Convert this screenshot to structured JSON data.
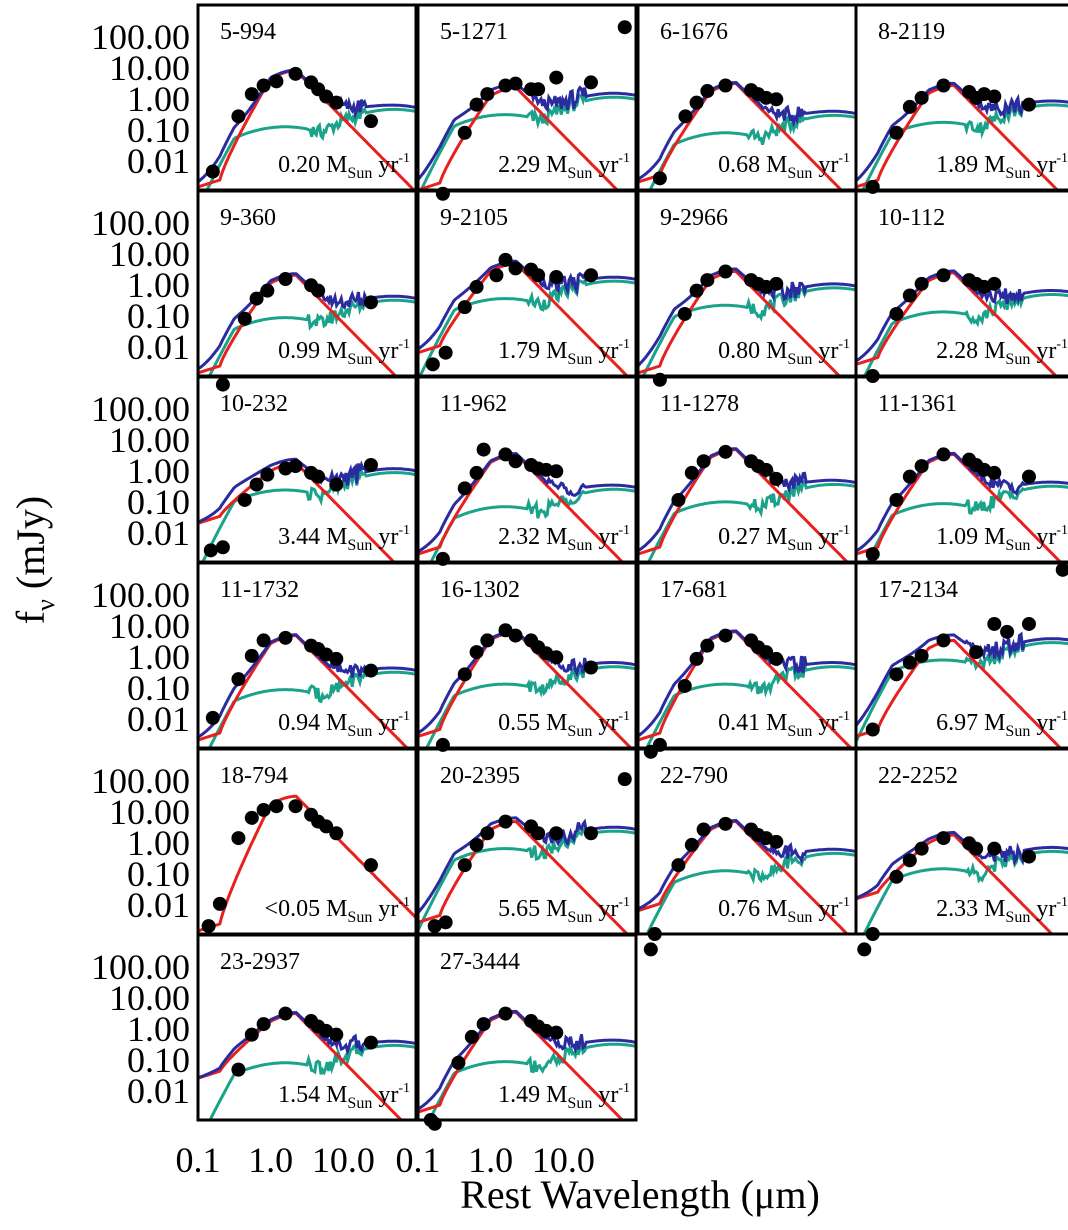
{
  "figure": {
    "ylabel_main": "f",
    "ylabel_sub": "ν",
    "ylabel_unit": "(mJy)",
    "xlabel": "Rest Wavelength (μm)",
    "y_tick_labels": [
      "100.00",
      "10.00",
      "1.00",
      "0.10",
      "0.01"
    ],
    "x_tick_labels": [
      "0.1",
      "1.0",
      "10.0"
    ],
    "sfr_unit_main": "M",
    "sfr_unit_sub": "Sun",
    "sfr_unit_yr": "yr",
    "sfr_unit_exp": "-1"
  },
  "chart_data": {
    "type": "line",
    "layout": "grid of 22 panels, 4 columns x 6 rows",
    "x_scale": "log",
    "y_scale": "log",
    "xlim": [
      0.1,
      100
    ],
    "ylim": [
      0.005,
      300
    ],
    "colors": {
      "total": "#2b2ba0",
      "stellar": "#e8201e",
      "dust": "#1aa38a",
      "points": "#000000"
    },
    "panels": [
      {
        "id": "5-994",
        "sfr": "0.20",
        "sfr_prefix": "",
        "peak": 6,
        "dust_scale": 0.08,
        "uv": 0.006,
        "has_total": true,
        "points": [
          [
            0.16,
            0.015
          ],
          [
            0.36,
            0.4
          ],
          [
            0.55,
            1.5
          ],
          [
            0.8,
            2.5
          ],
          [
            1.2,
            3.2
          ],
          [
            2.2,
            5
          ],
          [
            3.6,
            3
          ],
          [
            4.5,
            2
          ],
          [
            5.8,
            1.3
          ],
          [
            8,
            0.9
          ],
          [
            24,
            0.3
          ]
        ]
      },
      {
        "id": "5-1271",
        "sfr": "2.29",
        "sfr_prefix": "",
        "peak": 2.2,
        "dust_scale": 0.45,
        "uv": 0.005,
        "has_total": true,
        "points": [
          [
            0.22,
            0.004
          ],
          [
            0.44,
            0.15
          ],
          [
            0.64,
            0.8
          ],
          [
            0.9,
            1.5
          ],
          [
            1.6,
            2.5
          ],
          [
            2.2,
            2.8
          ],
          [
            3.6,
            2
          ],
          [
            4.5,
            2
          ],
          [
            8,
            4
          ],
          [
            24,
            3
          ],
          [
            70,
            80
          ]
        ]
      },
      {
        "id": "6-1676",
        "sfr": "0.68",
        "sfr_prefix": "",
        "peak": 2.8,
        "dust_scale": 0.12,
        "uv": 0.008,
        "has_total": true,
        "points": [
          [
            0.2,
            0.01
          ],
          [
            0.45,
            0.4
          ],
          [
            0.64,
            0.9
          ],
          [
            0.9,
            1.8
          ],
          [
            1.6,
            2.5
          ],
          [
            3.6,
            1.9
          ],
          [
            4.5,
            1.5
          ],
          [
            5.8,
            1.2
          ],
          [
            8,
            1.1
          ]
        ]
      },
      {
        "id": "8-2119",
        "sfr": "1.89",
        "sfr_prefix": "",
        "peak": 2.5,
        "dust_scale": 0.25,
        "uv": 0.006,
        "has_total": true,
        "points": [
          [
            0.17,
            0.006
          ],
          [
            0.36,
            0.15
          ],
          [
            0.55,
            0.7
          ],
          [
            0.8,
            1.2
          ],
          [
            1.6,
            2.5
          ],
          [
            3.6,
            1.7
          ],
          [
            4.5,
            1.2
          ],
          [
            5.8,
            1.5
          ],
          [
            8,
            1.3
          ],
          [
            24,
            0.8
          ]
        ]
      },
      {
        "id": "9-360",
        "sfr": "0.99",
        "sfr_prefix": "",
        "peak": 2,
        "dust_scale": 0.18,
        "uv": 0.006,
        "has_total": true,
        "points": [
          [
            0.22,
            0.003
          ],
          [
            0.44,
            0.15
          ],
          [
            0.64,
            0.5
          ],
          [
            0.9,
            0.8
          ],
          [
            1.6,
            1.6
          ],
          [
            3.6,
            1.1
          ],
          [
            4.5,
            0.8
          ],
          [
            24,
            0.4
          ]
        ]
      },
      {
        "id": "9-2105",
        "sfr": "1.79",
        "sfr_prefix": "",
        "peak": 4,
        "dust_scale": 0.28,
        "uv": 0.02,
        "has_total": true,
        "points": [
          [
            0.16,
            0.01
          ],
          [
            0.24,
            0.02
          ],
          [
            0.44,
            0.3
          ],
          [
            0.64,
            1
          ],
          [
            1.2,
            2
          ],
          [
            1.6,
            5
          ],
          [
            2.2,
            3
          ],
          [
            3.6,
            2.8
          ],
          [
            4.5,
            2
          ],
          [
            8,
            1.8
          ],
          [
            24,
            2
          ]
        ]
      },
      {
        "id": "9-2966",
        "sfr": "0.80",
        "sfr_prefix": "",
        "peak": 2.5,
        "dust_scale": 0.3,
        "uv": 0.006,
        "has_total": true,
        "points": [
          [
            0.2,
            0.004
          ],
          [
            0.44,
            0.2
          ],
          [
            0.64,
            0.8
          ],
          [
            0.9,
            1.5
          ],
          [
            1.6,
            2.5
          ],
          [
            3.6,
            1.5
          ],
          [
            4.5,
            1.2
          ],
          [
            5.8,
            1
          ],
          [
            8,
            1.2
          ]
        ]
      },
      {
        "id": "10-112",
        "sfr": "2.28",
        "sfr_prefix": "",
        "peak": 2.3,
        "dust_scale": 0.22,
        "uv": 0.01,
        "has_total": true,
        "points": [
          [
            0.17,
            0.005
          ],
          [
            0.36,
            0.2
          ],
          [
            0.55,
            0.6
          ],
          [
            0.8,
            1.2
          ],
          [
            1.6,
            2
          ],
          [
            3.6,
            1.5
          ],
          [
            4.5,
            1.2
          ],
          [
            5.8,
            1
          ],
          [
            8,
            1.2
          ]
        ]
      },
      {
        "id": "10-232",
        "sfr": "3.44",
        "sfr_prefix": "",
        "peak": 1.8,
        "dust_scale": 0.45,
        "uv": 0.05,
        "has_total": true,
        "points": [
          [
            0.15,
            0.01
          ],
          [
            0.22,
            0.012
          ],
          [
            0.44,
            0.2
          ],
          [
            0.64,
            0.5
          ],
          [
            0.9,
            0.9
          ],
          [
            1.6,
            1.3
          ],
          [
            2.2,
            1.5
          ],
          [
            3.6,
            1
          ],
          [
            4.5,
            0.8
          ],
          [
            8,
            0.5
          ],
          [
            24,
            1.6
          ]
        ]
      },
      {
        "id": "11-962",
        "sfr": "2.32",
        "sfr_prefix": "",
        "peak": 3,
        "dust_scale": 0.1,
        "uv": 0.008,
        "has_total": true,
        "points": [
          [
            0.22,
            0.006
          ],
          [
            0.44,
            0.4
          ],
          [
            0.64,
            1
          ],
          [
            0.8,
            4
          ],
          [
            1.6,
            3
          ],
          [
            2.2,
            2
          ],
          [
            3.6,
            1.6
          ],
          [
            4.5,
            1.3
          ],
          [
            5.8,
            1.2
          ],
          [
            8,
            1.1
          ]
        ]
      },
      {
        "id": "11-1278",
        "sfr": "0.27",
        "sfr_prefix": "",
        "peak": 4,
        "dust_scale": 0.1,
        "uv": 0.008,
        "has_total": true,
        "points": [
          [
            0.36,
            0.2
          ],
          [
            0.55,
            1
          ],
          [
            0.8,
            2
          ],
          [
            1.6,
            3.5
          ],
          [
            3.6,
            2
          ],
          [
            4.5,
            1.5
          ],
          [
            5.8,
            1.2
          ],
          [
            8,
            0.7
          ]
        ]
      },
      {
        "id": "11-1361",
        "sfr": "1.09",
        "sfr_prefix": "",
        "peak": 3,
        "dust_scale": 0.12,
        "uv": 0.008,
        "has_total": true,
        "points": [
          [
            0.17,
            0.008
          ],
          [
            0.36,
            0.2
          ],
          [
            0.55,
            0.8
          ],
          [
            0.8,
            1.5
          ],
          [
            1.6,
            3
          ],
          [
            3.6,
            2.2
          ],
          [
            4.5,
            1.6
          ],
          [
            5.8,
            1.2
          ],
          [
            8,
            1
          ],
          [
            24,
            0.8
          ]
        ]
      },
      {
        "id": "11-1732",
        "sfr": "0.94",
        "sfr_prefix": "",
        "peak": 4,
        "dust_scale": 0.09,
        "uv": 0.008,
        "has_total": true,
        "points": [
          [
            0.16,
            0.03
          ],
          [
            0.36,
            0.3
          ],
          [
            0.55,
            1.2
          ],
          [
            0.8,
            3
          ],
          [
            1.6,
            3.5
          ],
          [
            3.6,
            2.2
          ],
          [
            4.5,
            1.8
          ],
          [
            5.8,
            1.3
          ],
          [
            8,
            1
          ],
          [
            24,
            0.5
          ]
        ]
      },
      {
        "id": "16-1302",
        "sfr": "0.55",
        "sfr_prefix": "",
        "peak": 5,
        "dust_scale": 0.1,
        "uv": 0.01,
        "has_total": true,
        "points": [
          [
            0.22,
            0.006
          ],
          [
            0.44,
            0.4
          ],
          [
            0.64,
            1.5
          ],
          [
            0.9,
            3
          ],
          [
            1.6,
            5.5
          ],
          [
            2.2,
            4
          ],
          [
            3.6,
            3
          ],
          [
            4.5,
            2
          ],
          [
            5.8,
            1.4
          ],
          [
            8,
            1.1
          ],
          [
            24,
            0.6
          ]
        ]
      },
      {
        "id": "17-681",
        "sfr": "0.41",
        "sfr_prefix": "",
        "peak": 5,
        "dust_scale": 0.1,
        "uv": 0.008,
        "has_total": true,
        "points": [
          [
            0.15,
            0.004
          ],
          [
            0.2,
            0.006
          ],
          [
            0.44,
            0.2
          ],
          [
            0.64,
            1
          ],
          [
            0.9,
            2.2
          ],
          [
            1.6,
            4
          ],
          [
            3.6,
            3
          ],
          [
            4.5,
            2
          ],
          [
            5.8,
            1.5
          ],
          [
            8,
            1
          ]
        ]
      },
      {
        "id": "17-2134",
        "sfr": "6.97",
        "sfr_prefix": "",
        "peak": 3,
        "dust_scale": 0.7,
        "uv": 0.01,
        "has_total": true,
        "points": [
          [
            0.17,
            0.015
          ],
          [
            0.36,
            0.4
          ],
          [
            0.55,
            0.8
          ],
          [
            0.8,
            1.2
          ],
          [
            1.6,
            3
          ],
          [
            4.5,
            1.5
          ],
          [
            8,
            8
          ],
          [
            12,
            5
          ],
          [
            24,
            8
          ],
          [
            70,
            200
          ]
        ]
      },
      {
        "id": "18-794",
        "sfr": "0.05",
        "sfr_prefix": "<",
        "peak": 18,
        "dust_scale": 0,
        "uv": 0.006,
        "has_total": false,
        "points": [
          [
            0.14,
            0.008
          ],
          [
            0.2,
            0.03
          ],
          [
            0.36,
            1.5
          ],
          [
            0.55,
            5
          ],
          [
            0.8,
            8
          ],
          [
            1.2,
            10
          ],
          [
            2.2,
            10
          ],
          [
            3.6,
            6
          ],
          [
            4.5,
            4
          ],
          [
            5.8,
            3
          ],
          [
            8,
            2
          ],
          [
            24,
            0.3
          ]
        ]
      },
      {
        "id": "20-2395",
        "sfr": "5.65",
        "sfr_prefix": "",
        "peak": 4,
        "dust_scale": 0.45,
        "uv": 0.01,
        "has_total": true,
        "points": [
          [
            0.17,
            0.008
          ],
          [
            0.24,
            0.01
          ],
          [
            0.44,
            0.3
          ],
          [
            0.64,
            1
          ],
          [
            0.9,
            2
          ],
          [
            1.6,
            4
          ],
          [
            3.6,
            3
          ],
          [
            4.5,
            2
          ],
          [
            8,
            2
          ],
          [
            24,
            2
          ],
          [
            70,
            50
          ]
        ]
      },
      {
        "id": "22-790",
        "sfr": "0.76",
        "sfr_prefix": "",
        "peak": 4,
        "dust_scale": 0.12,
        "uv": 0.02,
        "has_total": true,
        "points": [
          [
            0.15,
            0.002
          ],
          [
            0.17,
            0.005
          ],
          [
            0.36,
            0.3
          ],
          [
            0.55,
            1
          ],
          [
            0.8,
            2.5
          ],
          [
            1.6,
            3.5
          ],
          [
            3.6,
            2.5
          ],
          [
            4.5,
            1.8
          ],
          [
            5.8,
            1.5
          ],
          [
            8,
            1.2
          ]
        ]
      },
      {
        "id": "22-2252",
        "sfr": "2.33",
        "sfr_prefix": "",
        "peak": 1.8,
        "dust_scale": 0.3,
        "uv": 0.04,
        "has_total": true,
        "points": [
          [
            0.13,
            0.002
          ],
          [
            0.17,
            0.005
          ],
          [
            0.36,
            0.15
          ],
          [
            0.55,
            0.4
          ],
          [
            0.8,
            0.8
          ],
          [
            1.6,
            1.5
          ],
          [
            3.6,
            1.1
          ],
          [
            4.5,
            0.8
          ],
          [
            8,
            0.8
          ],
          [
            24,
            0.5
          ]
        ]
      },
      {
        "id": "23-2937",
        "sfr": "1.54",
        "sfr_prefix": "",
        "peak": 2.8,
        "dust_scale": 0.12,
        "uv": 0.06,
        "has_total": true,
        "points": [
          [
            0.36,
            0.1
          ],
          [
            0.55,
            0.8
          ],
          [
            0.8,
            1.5
          ],
          [
            1.6,
            2.8
          ],
          [
            3.6,
            1.8
          ],
          [
            4.5,
            1.3
          ],
          [
            5.8,
            1
          ],
          [
            8,
            0.8
          ],
          [
            24,
            0.5
          ]
        ]
      },
      {
        "id": "27-3444",
        "sfr": "1.49",
        "sfr_prefix": "",
        "peak": 3,
        "dust_scale": 0.12,
        "uv": 0.008,
        "has_total": true,
        "points": [
          [
            0.15,
            0.005
          ],
          [
            0.17,
            0.004
          ],
          [
            0.36,
            0.15
          ],
          [
            0.55,
            0.7
          ],
          [
            0.8,
            1.5
          ],
          [
            1.6,
            2.8
          ],
          [
            3.6,
            1.8
          ],
          [
            4.5,
            1.3
          ],
          [
            5.8,
            1
          ],
          [
            8,
            0.9
          ]
        ]
      }
    ]
  }
}
